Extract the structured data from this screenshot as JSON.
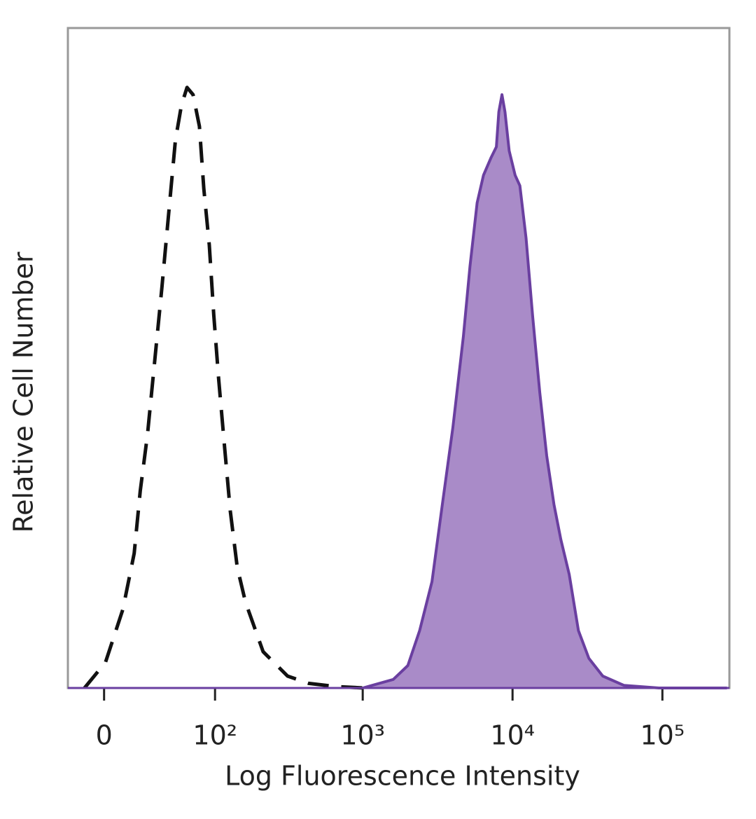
{
  "chart_data": {
    "type": "histogram-overlay",
    "x_label": "Log Fluorescence Intensity",
    "y_label": "Relative Cell Number",
    "x_scale": "biexponential",
    "xlim": [
      -22,
      280000
    ],
    "xticks": [
      0,
      {
        "value": 100,
        "label": "10²"
      },
      {
        "value": 1000,
        "label": "10³"
      },
      {
        "value": 10000,
        "label": "10⁴"
      },
      {
        "value": 100000,
        "label": "10⁵"
      }
    ],
    "ylim": [
      0,
      100
    ],
    "series": [
      {
        "color": "#111111",
        "line_style": "dashed",
        "fill": null,
        "x": [
          -11.5,
          0.8,
          11,
          18,
          22,
          27,
          32,
          38,
          44,
          50,
          56,
          62,
          69,
          77,
          83,
          91,
          98,
          106,
          117,
          128,
          143,
          163,
          215,
          314,
          435,
          669,
          1030
        ],
        "values": [
          0,
          3.9,
          11.9,
          20.4,
          29.9,
          38.4,
          49,
          60.7,
          72.4,
          83,
          88.3,
          91,
          89.9,
          85.1,
          75.6,
          67.1,
          56.5,
          46.9,
          36.3,
          26.8,
          18.3,
          13,
          5.5,
          1.8,
          0.7,
          0.2,
          0
        ]
      },
      {
        "color": "#6a3fa0",
        "line_style": "solid",
        "fill": "#a98bc8",
        "x": [
          1000,
          1600,
          2000,
          2400,
          2900,
          3400,
          4000,
          4700,
          5200,
          5800,
          6400,
          7200,
          7800,
          8100,
          8500,
          8900,
          9500,
          10400,
          11200,
          12300,
          13600,
          15200,
          16900,
          18900,
          21000,
          23900,
          27500,
          32300,
          40000,
          55300,
          94800,
          270000
        ],
        "values": [
          0,
          1.3,
          3.4,
          8.7,
          16.1,
          27.8,
          39.5,
          53.3,
          63.9,
          73.5,
          77.7,
          80.4,
          82,
          87.3,
          89.9,
          87.3,
          81.4,
          77.7,
          76.1,
          68.2,
          56.5,
          44.8,
          35.2,
          27.8,
          22.5,
          17.2,
          8.7,
          4.5,
          1.8,
          0.4,
          0,
          0
        ]
      }
    ]
  }
}
